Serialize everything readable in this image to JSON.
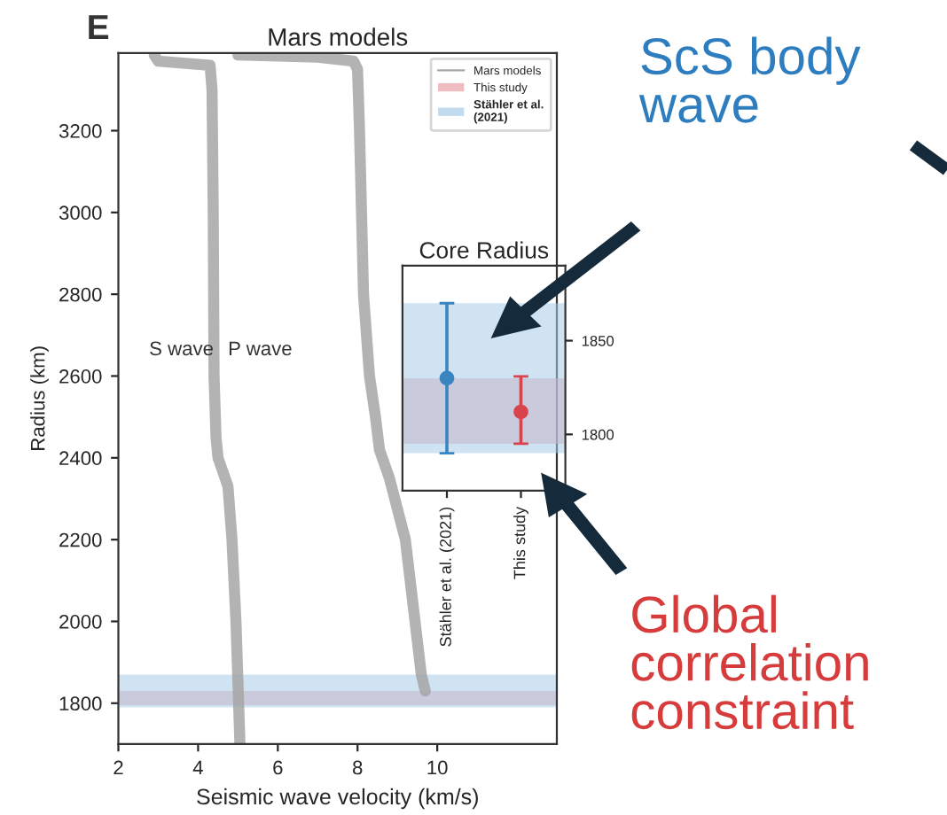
{
  "chart_data": [
    {
      "type": "line",
      "title": "Mars models",
      "xlabel": "Seismic wave velocity (km/s)",
      "ylabel": "Radius (km)",
      "xlim": [
        2,
        13
      ],
      "xticks": [
        2,
        4,
        6,
        8,
        10
      ],
      "ylim": [
        1700,
        3390
      ],
      "yticks": [
        1800,
        2000,
        2200,
        2400,
        2600,
        2800,
        3000,
        3200
      ],
      "grid": false,
      "legend": "top right",
      "series": [
        {
          "name": "Mars models",
          "color": "#a6a6a6",
          "x": [
            2.9,
            3.0,
            4.3,
            4.35,
            4.38,
            4.4,
            4.45,
            4.5,
            4.75,
            4.85,
            4.95,
            5.0,
            5.05
          ],
          "values": [
            3385,
            3370,
            3360,
            3300,
            3000,
            2600,
            2450,
            2400,
            2330,
            2200,
            2000,
            1850,
            1700
          ]
        },
        {
          "color": "#a6a6a6",
          "x": [
            5.0,
            7.0,
            7.9,
            8.0,
            8.05,
            8.1,
            8.15,
            8.3,
            8.45,
            8.55,
            8.8,
            9.2,
            9.6,
            9.7
          ],
          "values": [
            3385,
            3380,
            3370,
            3350,
            3200,
            3000,
            2800,
            2600,
            2500,
            2420,
            2350,
            2200,
            1870,
            1830
          ]
        }
      ],
      "bands": [
        {
          "axis": "y",
          "from": 1795,
          "to": 1830,
          "label": "This study",
          "color": "#e8a0a8"
        },
        {
          "axis": "y",
          "from": 1790,
          "to": 1870,
          "label": "Stähler et al. (2021)",
          "color": "#a8cce8"
        }
      ],
      "annotations": [
        "E",
        "S wave",
        "P wave"
      ]
    },
    {
      "type": "scatter",
      "title": "Core Radius",
      "categories": [
        "Stähler et al. (2021)",
        "This study"
      ],
      "marker": "circle",
      "series": [
        {
          "colors": [
            "#3a85c0",
            "#d9434b"
          ],
          "values": [
            1830,
            1812
          ],
          "errors": [
            [
              1790,
              1870
            ],
            [
              1795,
              1831
            ]
          ]
        }
      ],
      "ylim": [
        1770,
        1890
      ],
      "yticks": [
        1800,
        1850
      ],
      "bands": [
        {
          "axis": "y",
          "from": 1795,
          "to": 1830,
          "color": "#e8a0a8"
        },
        {
          "axis": "y",
          "from": 1790,
          "to": 1870,
          "color": "#a8cce8"
        }
      ],
      "annotations": [
        "ScS body wave",
        "Global correlation constraint"
      ]
    }
  ]
}
